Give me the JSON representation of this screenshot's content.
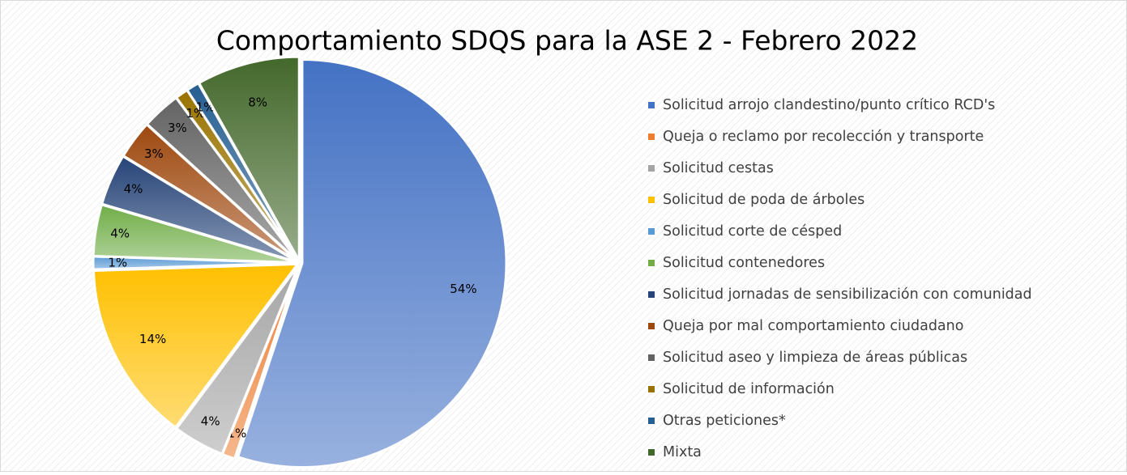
{
  "chart_data": {
    "type": "pie",
    "title": "Comportamiento SDQS para la ASE 2 - Febrero 2022",
    "categories": [
      "Solicitud arrojo clandestino/punto crítico RCD's",
      "Queja o reclamo por recolección y transporte",
      "Solicitud cestas",
      "Solicitud de poda de árboles",
      "Solicitud corte de césped",
      "Solicitud contenedores",
      "Solicitud jornadas de sensibilización con comunidad",
      "Queja por mal comportamiento ciudadano",
      "Solicitud aseo y limpieza de áreas públicas",
      "Solicitud de información",
      "Otras peticiones*",
      "Mixta"
    ],
    "values": [
      54,
      1,
      4,
      14,
      1,
      4,
      4,
      3,
      3,
      1,
      1,
      8
    ],
    "value_labels": [
      "54%",
      "1%",
      "4%",
      "14%",
      "1%",
      "4%",
      "4%",
      "3%",
      "3%",
      "1%",
      "1%",
      "8%"
    ],
    "colors": [
      "#4472c4",
      "#ed7d31",
      "#a5a5a5",
      "#ffc000",
      "#5b9bd5",
      "#70ad47",
      "#264478",
      "#9e480e",
      "#636363",
      "#997300",
      "#255e91",
      "#43682b"
    ],
    "legend": "right"
  }
}
